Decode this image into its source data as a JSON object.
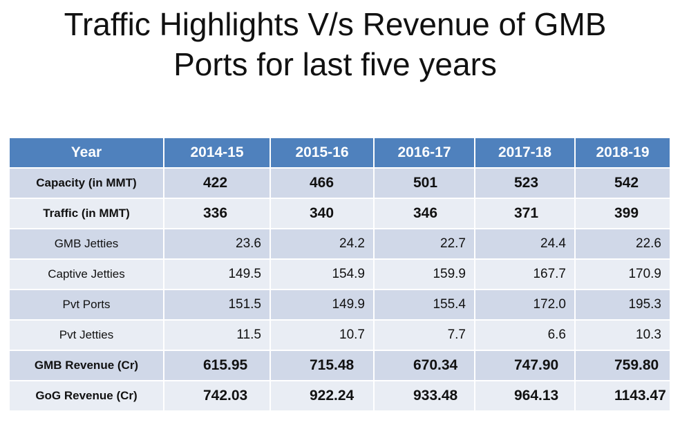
{
  "title": {
    "line1": "Traffic Highlights V/s Revenue of GMB",
    "line2": "Ports for last five years"
  },
  "table": {
    "headers": [
      "Year",
      "2014-15",
      "2015-16",
      "2016-17",
      "2017-18",
      "2018-19"
    ],
    "rows": [
      {
        "label": "Capacity (in MMT)",
        "values": [
          "422",
          "466",
          "501",
          "523",
          "542"
        ]
      },
      {
        "label": "Traffic (in MMT)",
        "values": [
          "336",
          "340",
          "346",
          "371",
          "399"
        ]
      },
      {
        "label": "GMB Jetties",
        "values": [
          "23.6",
          "24.2",
          "22.7",
          "24.4",
          "22.6"
        ]
      },
      {
        "label": "Captive Jetties",
        "values": [
          "149.5",
          "154.9",
          "159.9",
          "167.7",
          "170.9"
        ]
      },
      {
        "label": "Pvt Ports",
        "values": [
          "151.5",
          "149.9",
          "155.4",
          "172.0",
          "195.3"
        ]
      },
      {
        "label": "Pvt Jetties",
        "values": [
          "11.5",
          "10.7",
          "7.7",
          "6.6",
          "10.3"
        ]
      },
      {
        "label": "GMB Revenue (Cr)",
        "values": [
          "615.95",
          "715.48",
          "670.34",
          "747.90",
          "759.80"
        ]
      },
      {
        "label": "GoG Revenue (Cr)",
        "values": [
          "742.03",
          "922.24",
          "933.48",
          "964.13",
          "1143.47"
        ]
      }
    ]
  },
  "colors": {
    "header_bg": "#4f81bd",
    "row_odd": "#d0d8e8",
    "row_even": "#e9edf4"
  }
}
